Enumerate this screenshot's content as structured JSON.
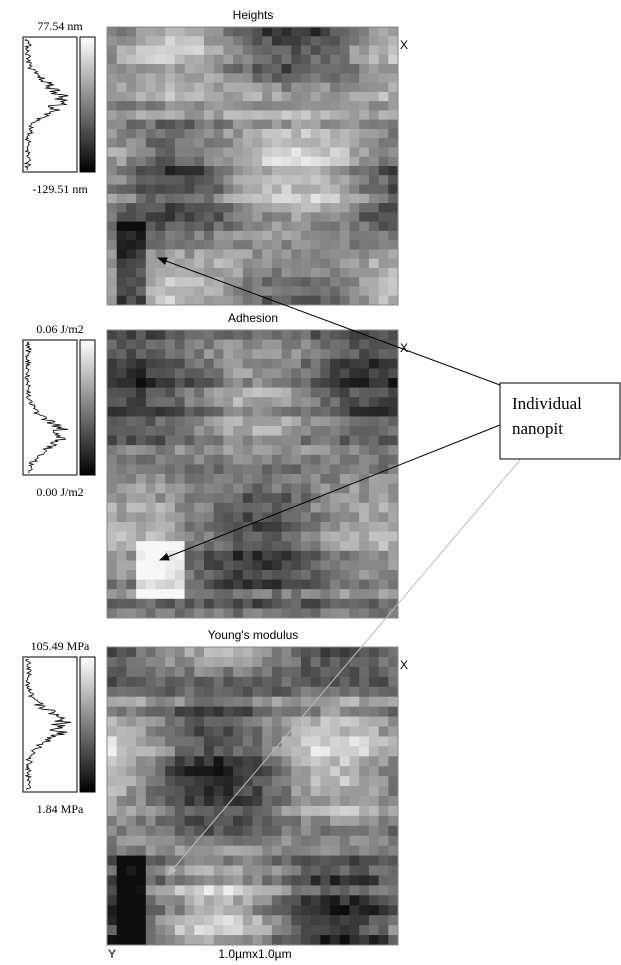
{
  "panels": [
    {
      "title": "Heights",
      "max_label": "77.54 nm",
      "min_label": "-129.51 nm",
      "axis_label": "X"
    },
    {
      "title": "Adhesion",
      "max_label": "0.06 J/m2",
      "min_label": "0.00 J/m2",
      "axis_label": "X"
    },
    {
      "title": "Young's modulus",
      "max_label": "105.49 MPa",
      "min_label": "1.84 MPa",
      "axis_label": "X"
    }
  ],
  "footer": {
    "y_label": "Y",
    "scale": "1.0µmx1.0µm"
  },
  "callout": {
    "lines": [
      "Individual",
      "nanopit"
    ]
  }
}
